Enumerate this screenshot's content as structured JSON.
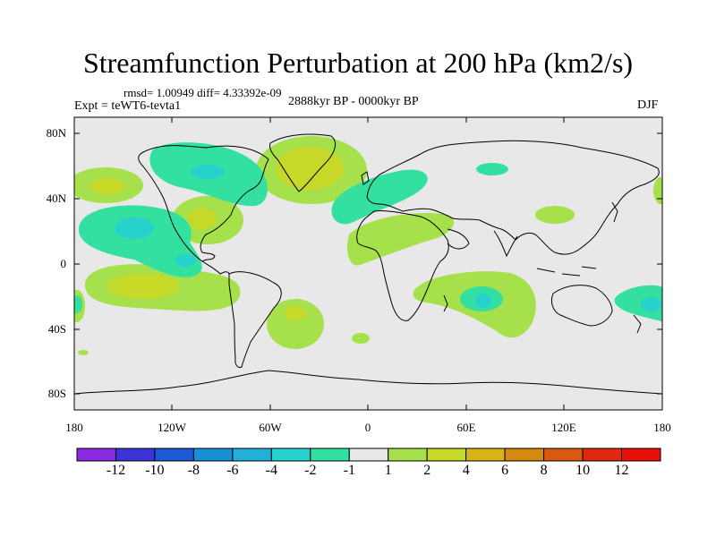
{
  "title": "Streamfunction Perturbation at 200 hPa (km2/s)",
  "stats": "rmsd= 1.00949 diff= 4.33392e-09",
  "experiment": "Expt = teWT6-tevta1",
  "period": "2888kyr BP - 0000kyr BP",
  "season": "DJF",
  "lat_labels": [
    "80N",
    "40N",
    "0",
    "40S",
    "80S"
  ],
  "lon_labels": [
    "180",
    "120W",
    "60W",
    "0",
    "60E",
    "120E",
    "180"
  ],
  "colorbar": {
    "labels": [
      "-12",
      "-10",
      "-8",
      "-6",
      "-4",
      "-2",
      "-1",
      "1",
      "2",
      "4",
      "6",
      "8",
      "10",
      "12"
    ],
    "colors": [
      "#8a2be2",
      "#3c33d6",
      "#1c5ad8",
      "#1890d8",
      "#20b0d8",
      "#28d2cc",
      "#33e0a0",
      "#e8e8e8",
      "#a6e04a",
      "#c6d828",
      "#d6b418",
      "#d68a10",
      "#d85a10",
      "#e02810",
      "#e81008"
    ]
  },
  "colors": {
    "land_background": "#e8e8e8",
    "neg_weak": "#33e0a0",
    "neg_mid": "#28d2cc",
    "pos_weak": "#a6e04a",
    "pos_mid": "#c6d828"
  }
}
